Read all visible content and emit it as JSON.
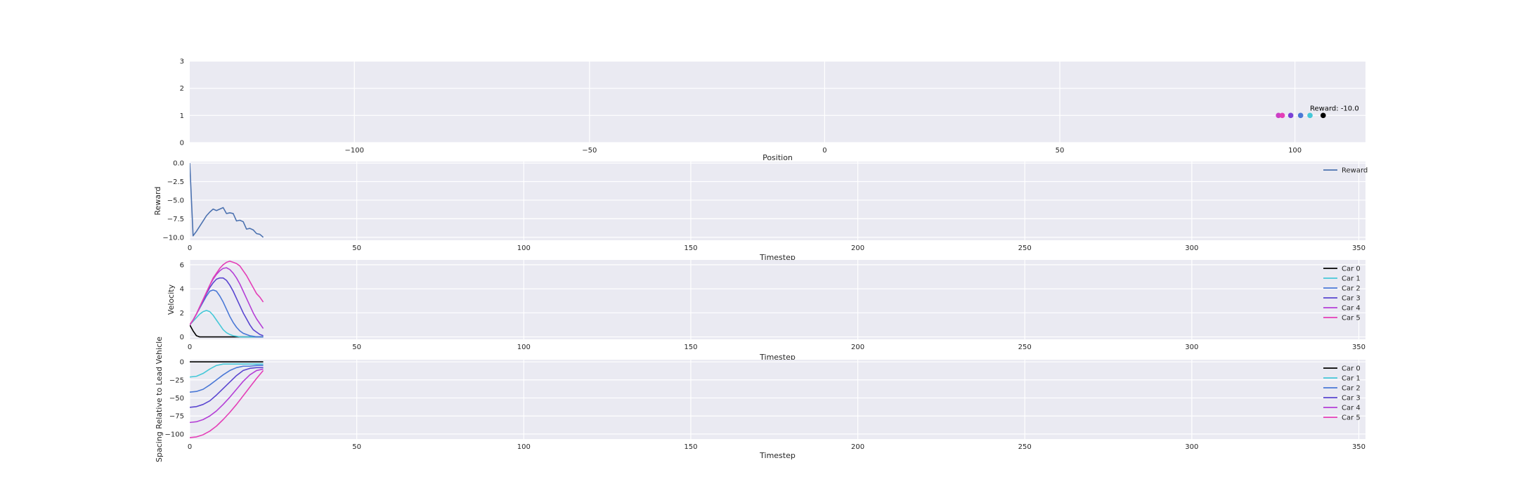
{
  "chart_data": [
    {
      "id": "positions",
      "type": "scatter",
      "xlabel": "Position",
      "ylabel": "",
      "xlim": [
        -135,
        115
      ],
      "ylim": [
        0,
        3
      ],
      "xticks": [
        -100,
        -50,
        0,
        50,
        100
      ],
      "yticks": [
        0,
        1,
        2,
        3
      ],
      "grid": true,
      "points": [
        {
          "x": 96.5,
          "y": 1,
          "color": "#cc3fc6"
        },
        {
          "x": 97.3,
          "y": 1,
          "color": "#e43fb7"
        },
        {
          "x": 99.1,
          "y": 1,
          "color": "#7a41d6"
        },
        {
          "x": 101.2,
          "y": 1,
          "color": "#4a78d6"
        },
        {
          "x": 103.2,
          "y": 1,
          "color": "#45c8d8"
        },
        {
          "x": 106.0,
          "y": 1,
          "color": "#000000"
        }
      ],
      "annotation": {
        "text": "Reward: -10.0",
        "x": 103.2,
        "y": 1.12
      }
    },
    {
      "id": "reward",
      "type": "line",
      "xlabel": "Timestep",
      "ylabel": "Reward",
      "xlim": [
        0,
        352
      ],
      "ylim": [
        -10.4,
        0.2
      ],
      "xticks": [
        0,
        50,
        100,
        150,
        200,
        250,
        300,
        350
      ],
      "yticks": [
        0.0,
        -2.5,
        -5.0,
        -7.5,
        -10.0
      ],
      "ytick_labels": [
        "0.0",
        "−2.5",
        "−5.0",
        "−7.5",
        "−10.0"
      ],
      "grid": true,
      "legend": "top-right",
      "series": [
        {
          "name": "Reward",
          "color": "#4c72b0",
          "x": [
            0,
            1,
            2,
            3,
            4,
            5,
            6,
            7,
            8,
            9,
            10,
            11,
            12,
            13,
            14,
            15,
            16,
            17,
            18,
            19,
            20,
            21,
            22
          ],
          "y": [
            0,
            -9.8,
            -9.2,
            -8.5,
            -7.8,
            -7.1,
            -6.6,
            -6.2,
            -6.4,
            -6.2,
            -6.0,
            -6.8,
            -6.7,
            -6.8,
            -7.8,
            -7.7,
            -7.9,
            -8.9,
            -8.8,
            -9.0,
            -9.5,
            -9.6,
            -10.0
          ]
        }
      ]
    },
    {
      "id": "velocity",
      "type": "line",
      "xlabel": "Timestep",
      "ylabel": "Velocity",
      "xlim": [
        0,
        352
      ],
      "ylim": [
        -0.2,
        6.4
      ],
      "xticks": [
        0,
        50,
        100,
        150,
        200,
        250,
        300,
        350
      ],
      "yticks": [
        0,
        2,
        4,
        6
      ],
      "grid": true,
      "legend": "top-right",
      "series": [
        {
          "name": "Car 0",
          "color": "#000000",
          "x": [
            0,
            1,
            2,
            3,
            4,
            5,
            6,
            7,
            8,
            9,
            10,
            11,
            12,
            13,
            14,
            15,
            16,
            17,
            18,
            19,
            20,
            21,
            22
          ],
          "y": [
            1.0,
            0.5,
            0.1,
            0,
            0,
            0,
            0,
            0,
            0,
            0,
            0,
            0,
            0,
            0,
            0,
            0,
            0,
            0,
            0,
            0,
            0,
            0,
            0
          ]
        },
        {
          "name": "Car 1",
          "color": "#45c8d8",
          "x": [
            0,
            1,
            2,
            3,
            4,
            5,
            6,
            7,
            8,
            9,
            10,
            11,
            12,
            13,
            14,
            15,
            16,
            17,
            18,
            19,
            20,
            21,
            22
          ],
          "y": [
            1.0,
            1.3,
            1.6,
            1.9,
            2.1,
            2.2,
            2.1,
            1.8,
            1.4,
            1.0,
            0.6,
            0.35,
            0.2,
            0.1,
            0.05,
            0,
            0,
            0,
            0,
            0,
            0,
            0,
            0
          ]
        },
        {
          "name": "Car 2",
          "color": "#4a78d6",
          "x": [
            0,
            1,
            2,
            3,
            4,
            5,
            6,
            7,
            8,
            9,
            10,
            11,
            12,
            13,
            14,
            15,
            16,
            17,
            18,
            19,
            20,
            21,
            22
          ],
          "y": [
            1.0,
            1.4,
            1.9,
            2.4,
            2.9,
            3.4,
            3.8,
            3.9,
            3.8,
            3.4,
            2.9,
            2.3,
            1.7,
            1.2,
            0.8,
            0.5,
            0.3,
            0.2,
            0.1,
            0.05,
            0,
            0,
            0
          ]
        },
        {
          "name": "Car 3",
          "color": "#5a45d0",
          "x": [
            0,
            1,
            2,
            3,
            4,
            5,
            6,
            7,
            8,
            9,
            10,
            11,
            12,
            13,
            14,
            15,
            16,
            17,
            18,
            19,
            20,
            21,
            22
          ],
          "y": [
            1.0,
            1.4,
            1.9,
            2.5,
            3.0,
            3.6,
            4.1,
            4.5,
            4.8,
            4.9,
            4.9,
            4.7,
            4.3,
            3.8,
            3.2,
            2.6,
            2.0,
            1.5,
            1.0,
            0.6,
            0.4,
            0.2,
            0.1
          ]
        },
        {
          "name": "Car 4",
          "color": "#b43fd6",
          "x": [
            0,
            1,
            2,
            3,
            4,
            5,
            6,
            7,
            8,
            9,
            10,
            11,
            12,
            13,
            14,
            15,
            16,
            17,
            18,
            19,
            20,
            21,
            22
          ],
          "y": [
            1.0,
            1.4,
            1.9,
            2.5,
            3.1,
            3.7,
            4.3,
            4.8,
            5.2,
            5.5,
            5.7,
            5.75,
            5.6,
            5.3,
            4.9,
            4.4,
            3.8,
            3.2,
            2.6,
            2.0,
            1.5,
            1.1,
            0.7
          ]
        },
        {
          "name": "Car 5",
          "color": "#e43fb7",
          "x": [
            0,
            1,
            2,
            3,
            4,
            5,
            6,
            7,
            8,
            9,
            10,
            11,
            12,
            13,
            14,
            15,
            16,
            17,
            18,
            19,
            20,
            21,
            22
          ],
          "y": [
            1.0,
            1.4,
            1.9,
            2.5,
            3.1,
            3.7,
            4.3,
            4.9,
            5.3,
            5.7,
            6.0,
            6.2,
            6.3,
            6.2,
            6.1,
            5.9,
            5.5,
            5.1,
            4.6,
            4.1,
            3.6,
            3.3,
            2.9
          ]
        }
      ]
    },
    {
      "id": "spacing",
      "type": "line",
      "xlabel": "Timestep",
      "ylabel": "Spacing Relative to Lead Vehicle",
      "xlim": [
        0,
        352
      ],
      "ylim": [
        -107,
        3
      ],
      "xticks": [
        0,
        50,
        100,
        150,
        200,
        250,
        300,
        350
      ],
      "yticks": [
        0,
        -25,
        -50,
        -75,
        -100
      ],
      "ytick_labels": [
        "0",
        "−25",
        "−50",
        "−75",
        "−100"
      ],
      "grid": true,
      "legend": "top-right",
      "series": [
        {
          "name": "Car 0",
          "color": "#000000",
          "x": [
            0,
            22
          ],
          "y": [
            0,
            0
          ]
        },
        {
          "name": "Car 1",
          "color": "#45c8d8",
          "x": [
            0,
            2,
            4,
            6,
            8,
            10,
            12,
            14,
            16,
            18,
            20,
            22
          ],
          "y": [
            -21,
            -20,
            -16,
            -10,
            -5,
            -3,
            -3,
            -3,
            -3,
            -3,
            -3,
            -3
          ]
        },
        {
          "name": "Car 2",
          "color": "#4a78d6",
          "x": [
            0,
            2,
            4,
            6,
            8,
            10,
            12,
            14,
            16,
            18,
            20,
            22
          ],
          "y": [
            -42,
            -41,
            -38,
            -32,
            -25,
            -18,
            -12,
            -8,
            -6,
            -6,
            -5,
            -5
          ]
        },
        {
          "name": "Car 3",
          "color": "#5a45d0",
          "x": [
            0,
            2,
            4,
            6,
            8,
            10,
            12,
            14,
            16,
            18,
            20,
            22
          ],
          "y": [
            -63,
            -62,
            -59,
            -54,
            -46,
            -37,
            -28,
            -19,
            -12,
            -9,
            -8,
            -8
          ]
        },
        {
          "name": "Car 4",
          "color": "#b43fd6",
          "x": [
            0,
            2,
            4,
            6,
            8,
            10,
            12,
            14,
            16,
            18,
            20,
            22
          ],
          "y": [
            -84,
            -83,
            -80,
            -75,
            -68,
            -59,
            -49,
            -38,
            -27,
            -18,
            -12,
            -10
          ]
        },
        {
          "name": "Car 5",
          "color": "#e43fb7",
          "x": [
            0,
            2,
            4,
            6,
            8,
            10,
            12,
            14,
            16,
            18,
            20,
            22
          ],
          "y": [
            -105,
            -104,
            -101,
            -96,
            -89,
            -80,
            -70,
            -59,
            -47,
            -35,
            -23,
            -12
          ]
        }
      ]
    }
  ]
}
